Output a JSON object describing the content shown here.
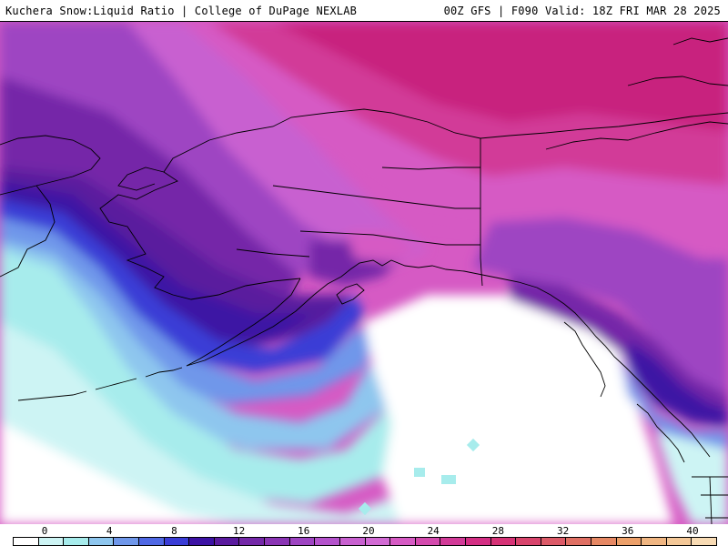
{
  "header": {
    "title_left": "Kuchera Snow:Liquid Ratio | College of DuPage NEXLAB",
    "title_right": "00Z GFS | F090 Valid: 18Z FRI MAR 28 2025"
  },
  "legend": {
    "tick_labels": [
      "0",
      "4",
      "8",
      "12",
      "16",
      "20",
      "24",
      "28",
      "32",
      "36",
      "40"
    ],
    "colors": [
      "#ffffff",
      "#cdf4f4",
      "#a7ecec",
      "#8ec6ee",
      "#6f97ea",
      "#4f68e4",
      "#3a3cd6",
      "#3c12a4",
      "#5a1a9e",
      "#7428a8",
      "#8a34b4",
      "#9e44c2",
      "#b452cc",
      "#c860d0",
      "#d26ad4",
      "#d65ac4",
      "#d44aae",
      "#d23a98",
      "#d42e84",
      "#d63276",
      "#d8446c",
      "#dc5a68",
      "#e07064",
      "#e68864",
      "#eca06a",
      "#f0b682",
      "#f4c898",
      "#f8dbb4"
    ]
  },
  "map": {
    "field_colors": {
      "white": "#ffffff",
      "cyan_pale": "#cdf4f4",
      "cyan": "#a7ecec",
      "blue_light": "#8ec6ee",
      "blue": "#6f97ea",
      "blue_deep": "#4f68e4",
      "indigo": "#3a3cd6",
      "violet_deep": "#3c12a4",
      "violet": "#5a1a9e",
      "purple": "#7428a8",
      "purple_mid": "#9e44c2",
      "orchid": "#c860d0",
      "magenta_light": "#d65ac4",
      "magenta": "#d23a98",
      "magenta_deep": "#c8227e"
    },
    "boundary_color": "#000000"
  }
}
